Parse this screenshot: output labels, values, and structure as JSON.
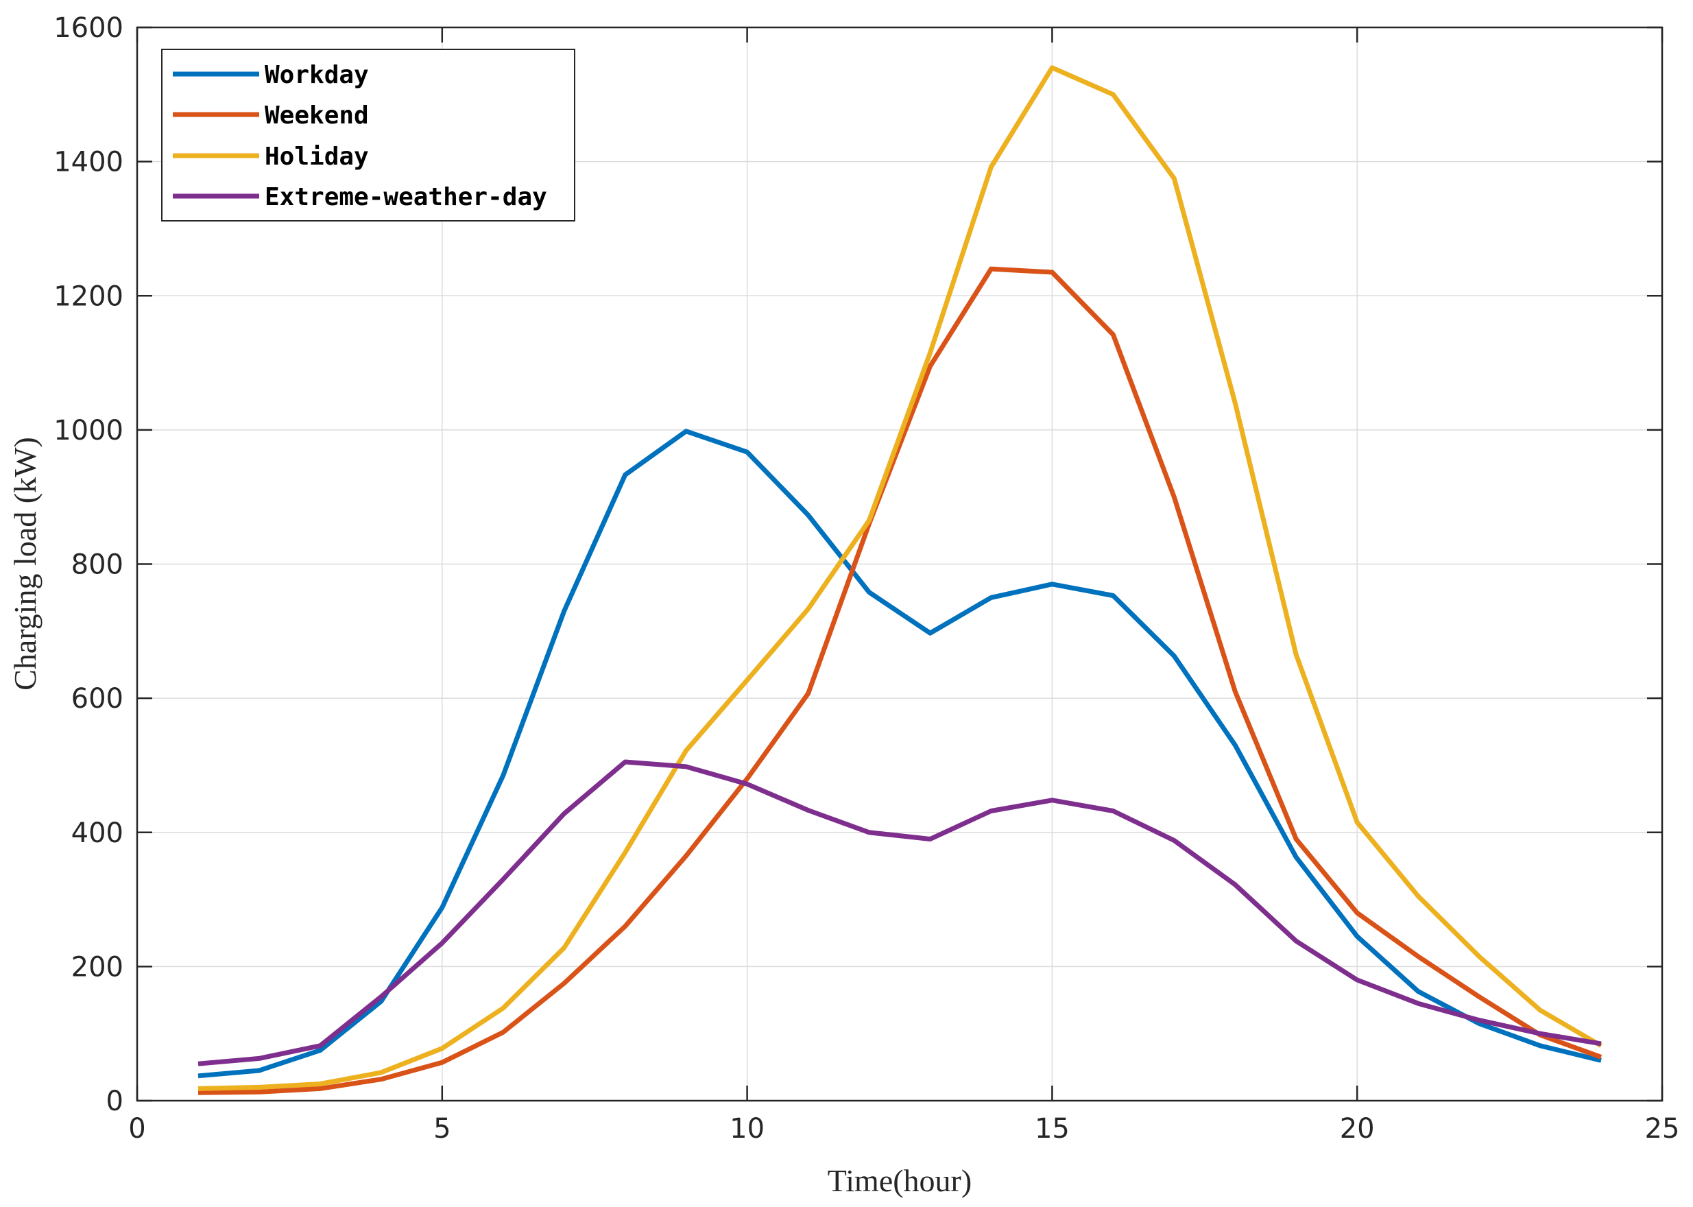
{
  "chart_data": {
    "type": "line",
    "title": "",
    "xlabel": "Time(hour)",
    "ylabel": "Charging load (kW)",
    "xlim": [
      0,
      25
    ],
    "ylim": [
      0,
      1600
    ],
    "xticks": [
      0,
      5,
      10,
      15,
      20,
      25
    ],
    "yticks": [
      0,
      200,
      400,
      600,
      800,
      1000,
      1200,
      1400,
      1600
    ],
    "grid": true,
    "legend_position": "top-left",
    "x": [
      1,
      2,
      3,
      4,
      5,
      6,
      7,
      8,
      9,
      10,
      11,
      12,
      13,
      14,
      15,
      16,
      17,
      18,
      19,
      20,
      21,
      22,
      23,
      24
    ],
    "series": [
      {
        "name": "Workday",
        "color": "#0072BD",
        "values": [
          37,
          45,
          75,
          148,
          288,
          485,
          730,
          933,
          998,
          967,
          873,
          758,
          697,
          750,
          770,
          753,
          663,
          530,
          363,
          245,
          163,
          115,
          82,
          60
        ]
      },
      {
        "name": "Weekend",
        "color": "#D95319",
        "values": [
          12,
          13,
          18,
          32,
          57,
          102,
          175,
          260,
          365,
          480,
          607,
          860,
          1095,
          1240,
          1235,
          1142,
          900,
          610,
          390,
          280,
          215,
          155,
          98,
          65
        ]
      },
      {
        "name": "Holiday",
        "color": "#EDB120",
        "values": [
          18,
          20,
          25,
          42,
          78,
          138,
          228,
          370,
          522,
          627,
          733,
          865,
          1115,
          1392,
          1540,
          1500,
          1375,
          1040,
          665,
          415,
          305,
          215,
          135,
          82
        ]
      },
      {
        "name": "Extreme-weather-day",
        "color": "#7E2F8E",
        "values": [
          55,
          63,
          82,
          155,
          235,
          330,
          428,
          505,
          498,
          472,
          433,
          400,
          390,
          432,
          448,
          432,
          388,
          322,
          238,
          180,
          145,
          120,
          100,
          85
        ]
      }
    ]
  }
}
